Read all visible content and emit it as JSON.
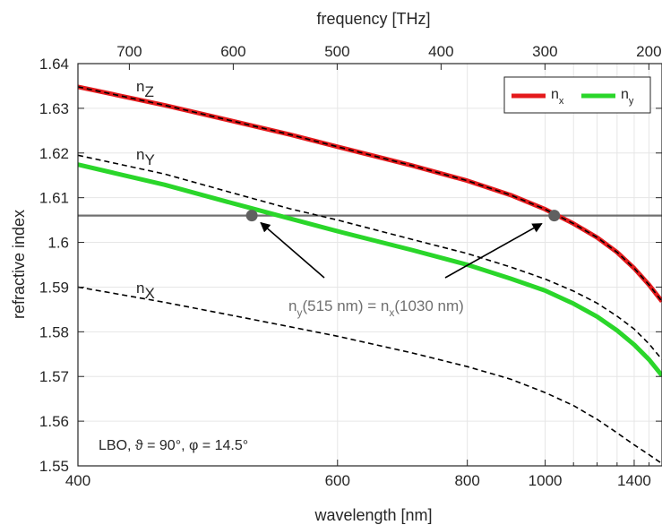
{
  "chart_data": {
    "type": "line",
    "xlabel": "wavelength [nm]",
    "ylabel": "refractive index",
    "x2label": "frequency [THz]",
    "x_scale": "reciprocal",
    "xlim": [
      400,
      1600
    ],
    "ylim": [
      1.55,
      1.64
    ],
    "xticks": [
      400,
      600,
      800,
      1000,
      1400
    ],
    "x_minor_ticks": [
      1100,
      1200,
      1300,
      1500
    ],
    "yticks": [
      1.55,
      1.56,
      1.57,
      1.58,
      1.59,
      1.6,
      1.61,
      1.62,
      1.63,
      1.64
    ],
    "ytick_labels": [
      "1.55",
      "1.56",
      "1.57",
      "1.58",
      "1.59",
      "1.6",
      "1.61",
      "1.62",
      "1.63",
      "1.64"
    ],
    "x2ticks": [
      700,
      600,
      500,
      400,
      300,
      200
    ],
    "grid": true,
    "legend_position": "top-right",
    "series": [
      {
        "name": "n_x",
        "label_main": "n",
        "label_sub": "x",
        "color": "#e41a1c",
        "x": [
          400,
          450,
          500,
          550,
          600,
          700,
          800,
          900,
          1000,
          1100,
          1200,
          1300,
          1400,
          1500,
          1600
        ],
        "y": [
          1.6348,
          1.6307,
          1.6271,
          1.6241,
          1.6214,
          1.6172,
          1.6138,
          1.6106,
          1.6074,
          1.6042,
          1.6011,
          1.5978,
          1.5942,
          1.5905,
          1.5868
        ]
      },
      {
        "name": "n_y",
        "label_main": "n",
        "label_sub": "y",
        "color": "#2ad62a",
        "x": [
          400,
          450,
          500,
          550,
          600,
          700,
          800,
          900,
          1000,
          1100,
          1200,
          1300,
          1400,
          1500,
          1600
        ],
        "y": [
          1.6174,
          1.6129,
          1.6087,
          1.6053,
          1.6025,
          1.5983,
          1.595,
          1.5919,
          1.5892,
          1.5863,
          1.5834,
          1.5803,
          1.5771,
          1.5738,
          1.5702
        ]
      }
    ],
    "principal_indices": [
      {
        "label_main": "n",
        "label_sub": "Z",
        "x": [
          400,
          450,
          500,
          550,
          600,
          700,
          800,
          900,
          1000,
          1100,
          1200,
          1300,
          1400,
          1500,
          1600
        ],
        "y": [
          1.6348,
          1.6307,
          1.6271,
          1.6241,
          1.6214,
          1.6172,
          1.6138,
          1.6106,
          1.6074,
          1.6042,
          1.6011,
          1.5978,
          1.5942,
          1.5905,
          1.5868
        ]
      },
      {
        "label_main": "n",
        "label_sub": "Y",
        "x": [
          400,
          450,
          500,
          550,
          600,
          700,
          800,
          900,
          1000,
          1100,
          1200,
          1300,
          1400,
          1500,
          1600
        ],
        "y": [
          1.6195,
          1.6153,
          1.611,
          1.6075,
          1.605,
          1.6007,
          1.5975,
          1.5945,
          1.5918,
          1.5891,
          1.5864,
          1.5835,
          1.5806,
          1.5773,
          1.5738
        ]
      },
      {
        "label_main": "n",
        "label_sub": "X",
        "x": [
          400,
          450,
          500,
          550,
          600,
          700,
          800,
          900,
          1000,
          1100,
          1200,
          1300,
          1400,
          1500,
          1600
        ],
        "y": [
          1.59,
          1.5866,
          1.5836,
          1.5811,
          1.579,
          1.5753,
          1.5722,
          1.5694,
          1.5664,
          1.5635,
          1.5604,
          1.5574,
          1.5547,
          1.5525,
          1.5505
        ]
      }
    ],
    "reference_line": {
      "y": 1.606,
      "color": "#707070"
    },
    "markers": [
      {
        "x": 515,
        "y": 1.606,
        "color": "#606060"
      },
      {
        "x": 1030,
        "y": 1.606,
        "color": "#606060"
      }
    ],
    "annotation": {
      "parts": [
        {
          "t": "n",
          "sub": false
        },
        {
          "t": "y",
          "sub": true
        },
        {
          "t": "(515 nm) = n",
          "sub": false
        },
        {
          "t": "x",
          "sub": true
        },
        {
          "t": "(1030 nm)",
          "sub": false
        }
      ]
    },
    "info_text": "LBO, ϑ = 90°, φ = 14.5°"
  }
}
